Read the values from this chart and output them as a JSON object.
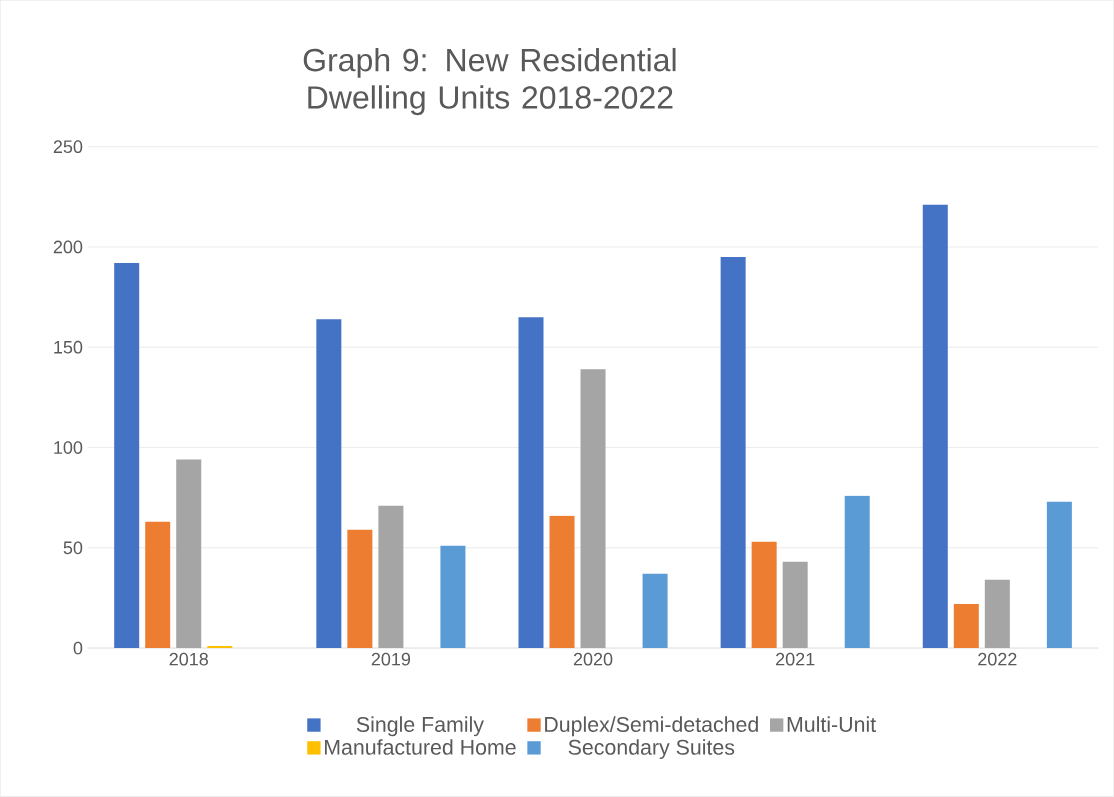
{
  "chart_data": {
    "type": "bar",
    "title": "Graph 9: New Residential Dwelling Units 2018-2022",
    "categories": [
      "2018",
      "2019",
      "2020",
      "2021",
      "2022"
    ],
    "series": [
      {
        "name": "Single Family",
        "color": "#4472c4",
        "values": [
          192,
          164,
          165,
          195,
          221
        ]
      },
      {
        "name": "Duplex/Semi-detached",
        "color": "#ed7d31",
        "values": [
          63,
          59,
          66,
          53,
          22
        ]
      },
      {
        "name": "Multi-Unit",
        "color": "#a5a5a5",
        "values": [
          94,
          71,
          139,
          43,
          34
        ]
      },
      {
        "name": "Manufactured Home",
        "color": "#ffc000",
        "values": [
          1,
          0,
          0,
          0,
          0
        ]
      },
      {
        "name": "Secondary Suites",
        "color": "#5b9bd5",
        "values": [
          0,
          51,
          37,
          76,
          73
        ]
      }
    ],
    "ylim": [
      0,
      250
    ],
    "yticks": [
      0,
      50,
      100,
      150,
      200,
      250
    ],
    "grid": "y",
    "legend": "bottom"
  }
}
